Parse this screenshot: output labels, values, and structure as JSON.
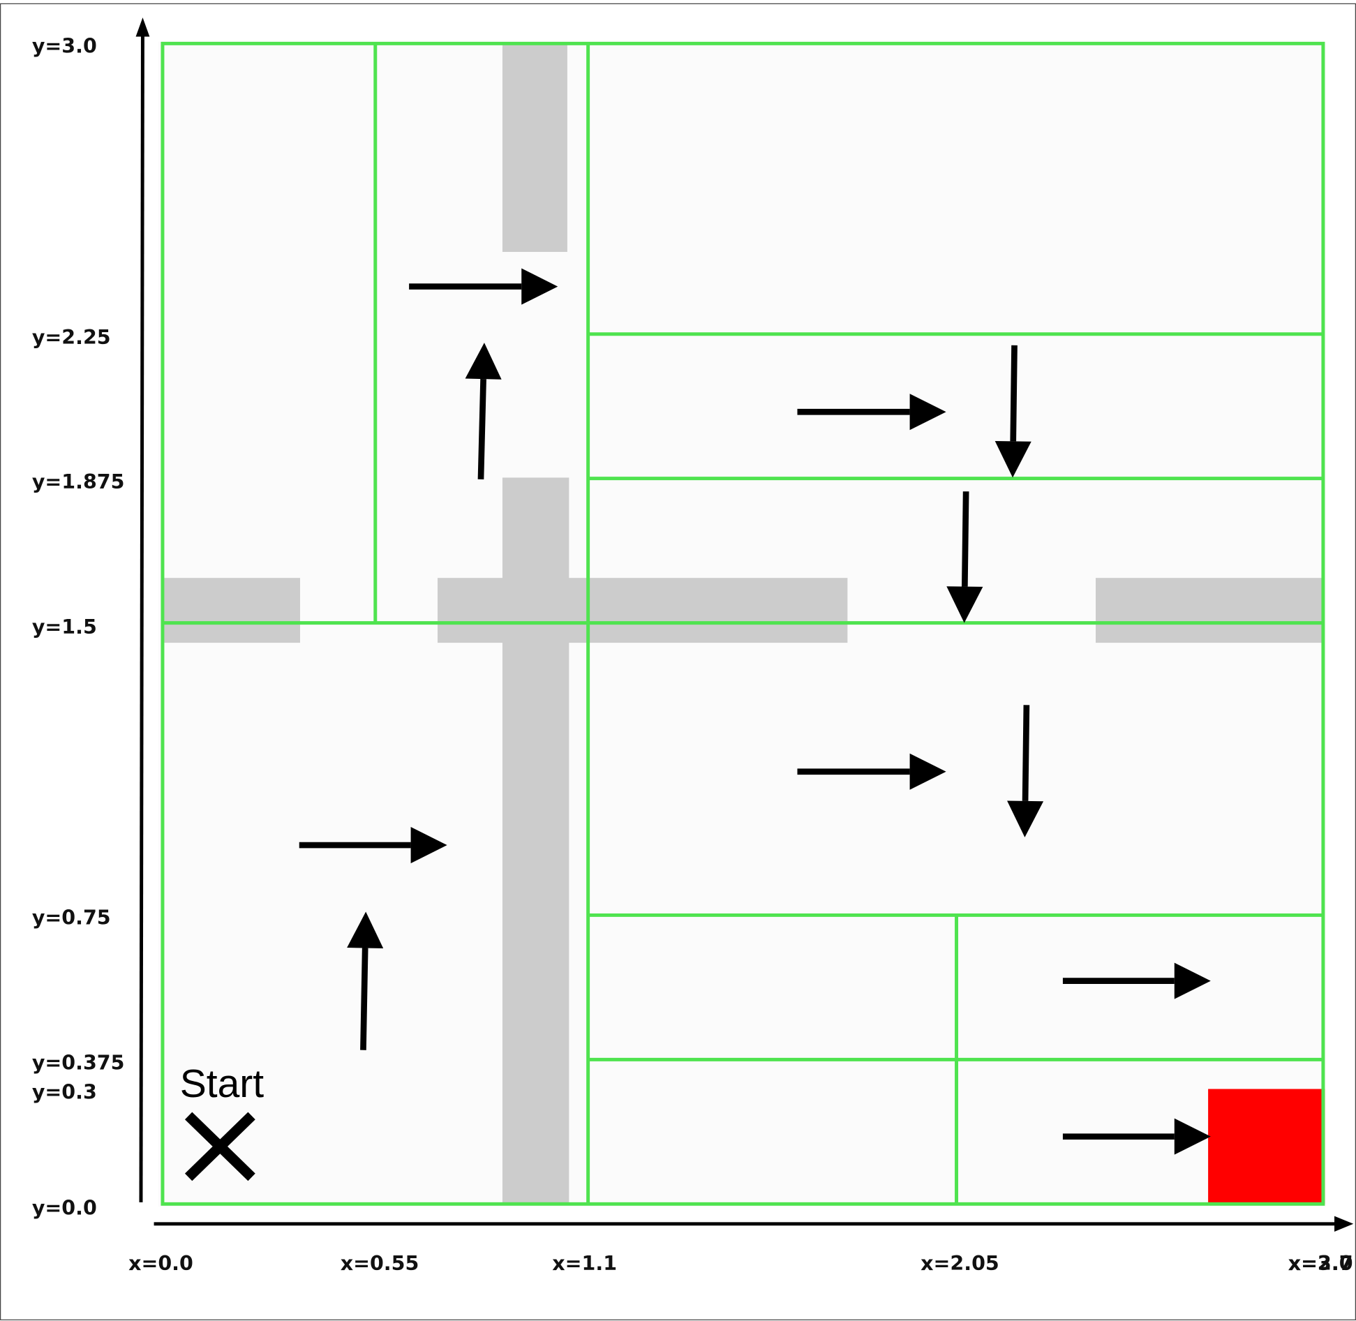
{
  "y_labels": [
    "y=3.0",
    "y=2.25",
    "y=1.875",
    "y=1.5",
    "y=0.75",
    "y=0.375",
    "y=0.3",
    "y=0.0"
  ],
  "x_labels": [
    "x=0.0",
    "x=0.55",
    "x=1.1",
    "x=2.05",
    "x=3.0",
    "x=2.7"
  ],
  "start_label": "Start"
}
